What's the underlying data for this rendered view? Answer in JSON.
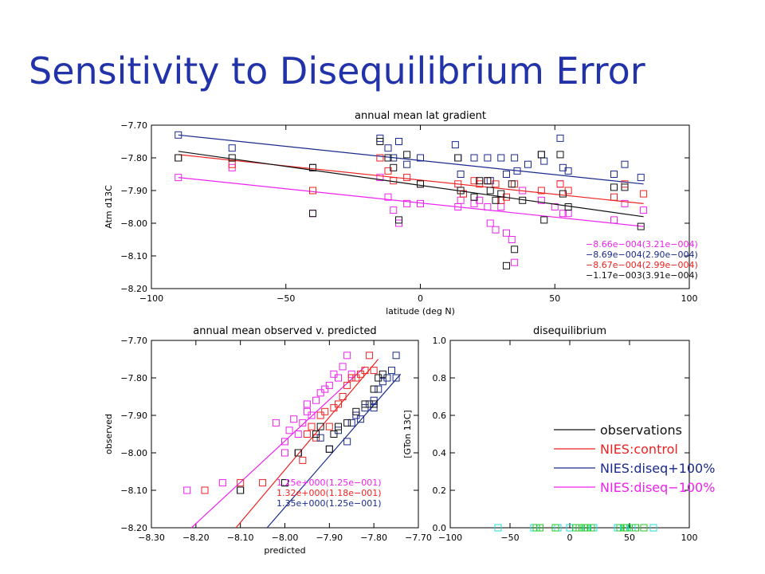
{
  "slide_title": "Sensitivity to Disequilibrium Error",
  "colors": {
    "title": "#2233aa",
    "black": "#111111",
    "red": "#ee2222",
    "blue": "#1a2a8c",
    "magenta": "#ee22ee",
    "cyan": "#22dddd",
    "green": "#22cc22"
  },
  "chart_data": [
    {
      "type": "scatter",
      "title": "annual mean lat gradient",
      "xlabel": "latitude (deg N)",
      "ylabel": "Atm d13C",
      "xlim": [
        -100,
        100
      ],
      "ylim": [
        -8.2,
        -7.7
      ],
      "xticks": [
        "−100",
        "−50",
        "0",
        "50",
        "100"
      ],
      "yticks": [
        "−7.70",
        "−7.80",
        "−7.90",
        "−8.00",
        "−8.10",
        "−8.20"
      ],
      "series": [
        {
          "color": "magenta",
          "points": [
            [
              -90,
              -7.86
            ],
            [
              -70,
              -7.83
            ],
            [
              -40,
              -7.9
            ],
            [
              -40,
              -7.97
            ],
            [
              -15,
              -7.86
            ],
            [
              -12,
              -7.92
            ],
            [
              -10,
              -7.96
            ],
            [
              -8,
              -8.0
            ],
            [
              -5,
              -7.94
            ],
            [
              0,
              -7.94
            ],
            [
              14,
              -7.95
            ],
            [
              15,
              -7.93
            ],
            [
              20,
              -7.94
            ],
            [
              22,
              -7.93
            ],
            [
              25,
              -7.95
            ],
            [
              26,
              -8.0
            ],
            [
              28,
              -8.02
            ],
            [
              30,
              -7.95
            ],
            [
              32,
              -8.03
            ],
            [
              34,
              -8.05
            ],
            [
              35,
              -8.12
            ],
            [
              38,
              -7.9
            ],
            [
              45,
              -7.93
            ],
            [
              50,
              -7.95
            ],
            [
              52,
              -7.88
            ],
            [
              53,
              -7.97
            ],
            [
              55,
              -7.97
            ],
            [
              72,
              -7.99
            ],
            [
              76,
              -7.94
            ],
            [
              83,
              -7.96
            ]
          ],
          "trend": [
            [
              -90,
              -7.86
            ],
            [
              83,
              -8.01
            ]
          ],
          "annotation": "−8.66e−004(3.21e−004)"
        },
        {
          "color": "blue",
          "points": [
            [
              -90,
              -7.73
            ],
            [
              -70,
              -7.77
            ],
            [
              -40,
              -7.83
            ],
            [
              -15,
              -7.74
            ],
            [
              -12,
              -7.77
            ],
            [
              -10,
              -7.8
            ],
            [
              -8,
              -7.75
            ],
            [
              -5,
              -7.82
            ],
            [
              0,
              -7.8
            ],
            [
              13,
              -7.76
            ],
            [
              14,
              -7.8
            ],
            [
              15,
              -7.85
            ],
            [
              20,
              -7.8
            ],
            [
              25,
              -7.8
            ],
            [
              26,
              -7.87
            ],
            [
              30,
              -7.8
            ],
            [
              32,
              -7.85
            ],
            [
              35,
              -7.8
            ],
            [
              36,
              -7.84
            ],
            [
              40,
              -7.82
            ],
            [
              45,
              -7.79
            ],
            [
              46,
              -7.81
            ],
            [
              52,
              -7.74
            ],
            [
              53,
              -7.83
            ],
            [
              55,
              -7.84
            ],
            [
              72,
              -7.85
            ],
            [
              76,
              -7.82
            ],
            [
              82,
              -7.86
            ]
          ],
          "trend": [
            [
              -90,
              -7.73
            ],
            [
              83,
              -7.88
            ]
          ],
          "annotation": "−8.69e−004(2.90e−004)"
        },
        {
          "color": "red",
          "points": [
            [
              -90,
              -7.8
            ],
            [
              -70,
              -7.82
            ],
            [
              -40,
              -7.9
            ],
            [
              -15,
              -7.8
            ],
            [
              -12,
              -7.84
            ],
            [
              -10,
              -7.87
            ],
            [
              -5,
              -7.86
            ],
            [
              0,
              -7.88
            ],
            [
              14,
              -7.88
            ],
            [
              16,
              -7.91
            ],
            [
              20,
              -7.87
            ],
            [
              22,
              -7.88
            ],
            [
              25,
              -7.87
            ],
            [
              28,
              -7.88
            ],
            [
              30,
              -7.93
            ],
            [
              32,
              -7.92
            ],
            [
              35,
              -7.88
            ],
            [
              45,
              -7.9
            ],
            [
              52,
              -7.88
            ],
            [
              55,
              -7.9
            ],
            [
              72,
              -7.92
            ],
            [
              76,
              -7.88
            ],
            [
              83,
              -7.91
            ]
          ],
          "trend": [
            [
              -90,
              -7.79
            ],
            [
              83,
              -7.94
            ]
          ],
          "annotation": "−8.67e−004(2.99e−004)"
        },
        {
          "color": "black",
          "points": [
            [
              -90,
              -7.8
            ],
            [
              -70,
              -7.8
            ],
            [
              -40,
              -7.83
            ],
            [
              -40,
              -7.97
            ],
            [
              -15,
              -7.75
            ],
            [
              -12,
              -7.8
            ],
            [
              -10,
              -7.83
            ],
            [
              -8,
              -7.99
            ],
            [
              -5,
              -7.79
            ],
            [
              0,
              -7.88
            ],
            [
              14,
              -7.8
            ],
            [
              15,
              -7.9
            ],
            [
              20,
              -7.92
            ],
            [
              22,
              -7.87
            ],
            [
              25,
              -7.87
            ],
            [
              26,
              -7.9
            ],
            [
              28,
              -7.93
            ],
            [
              30,
              -7.91
            ],
            [
              32,
              -8.13
            ],
            [
              34,
              -7.88
            ],
            [
              35,
              -8.08
            ],
            [
              38,
              -7.93
            ],
            [
              45,
              -7.79
            ],
            [
              46,
              -7.99
            ],
            [
              52,
              -7.79
            ],
            [
              53,
              -7.91
            ],
            [
              55,
              -7.95
            ],
            [
              72,
              -7.89
            ],
            [
              76,
              -7.89
            ],
            [
              82,
              -8.01
            ]
          ],
          "trend": [
            [
              -90,
              -7.78
            ],
            [
              83,
              -7.98
            ]
          ],
          "annotation": "−1.17e−003(3.91e−004)"
        }
      ]
    },
    {
      "type": "scatter",
      "title": "annual mean observed v. predicted",
      "xlabel": "predicted",
      "ylabel": "observed",
      "xlim": [
        -8.3,
        -7.7
      ],
      "ylim": [
        -8.2,
        -7.7
      ],
      "xticks": [
        "−8.30",
        "−8.20",
        "−8.10",
        "−8.00",
        "−7.90",
        "−7.80",
        "−7.70"
      ],
      "yticks": [
        "−7.70",
        "−7.80",
        "−7.90",
        "−8.00",
        "−8.10",
        "−8.20"
      ],
      "series": [
        {
          "color": "magenta",
          "points": [
            [
              -8.22,
              -8.1
            ],
            [
              -8.14,
              -8.08
            ],
            [
              -8.02,
              -7.92
            ],
            [
              -8.0,
              -8.0
            ],
            [
              -8.0,
              -7.97
            ],
            [
              -7.99,
              -7.94
            ],
            [
              -7.98,
              -7.91
            ],
            [
              -7.97,
              -7.95
            ],
            [
              -7.96,
              -7.92
            ],
            [
              -7.95,
              -7.89
            ],
            [
              -7.95,
              -7.87
            ],
            [
              -7.94,
              -7.9
            ],
            [
              -7.93,
              -7.86
            ],
            [
              -7.92,
              -7.84
            ],
            [
              -7.91,
              -7.83
            ],
            [
              -7.9,
              -7.82
            ],
            [
              -7.89,
              -7.79
            ],
            [
              -7.88,
              -7.8
            ],
            [
              -7.87,
              -7.77
            ],
            [
              -7.86,
              -7.74
            ],
            [
              -7.85,
              -7.79
            ]
          ],
          "trend": [
            [
              -8.21,
              -8.2
            ],
            [
              -7.82,
              -7.77
            ]
          ],
          "annotation": "1.25e+000(1.25e−001)"
        },
        {
          "color": "red",
          "points": [
            [
              -8.18,
              -8.1
            ],
            [
              -8.1,
              -8.08
            ],
            [
              -8.05,
              -8.08
            ],
            [
              -7.97,
              -8.0
            ],
            [
              -7.96,
              -8.02
            ],
            [
              -7.95,
              -7.95
            ],
            [
              -7.94,
              -7.93
            ],
            [
              -7.93,
              -7.96
            ],
            [
              -7.92,
              -7.9
            ],
            [
              -7.91,
              -7.89
            ],
            [
              -7.9,
              -7.93
            ],
            [
              -7.89,
              -7.88
            ],
            [
              -7.88,
              -7.87
            ],
            [
              -7.87,
              -7.85
            ],
            [
              -7.86,
              -7.82
            ],
            [
              -7.85,
              -7.8
            ],
            [
              -7.84,
              -7.8
            ],
            [
              -7.83,
              -7.79
            ],
            [
              -7.82,
              -7.78
            ],
            [
              -7.81,
              -7.74
            ],
            [
              -7.8,
              -7.78
            ]
          ],
          "trend": [
            [
              -8.11,
              -8.2
            ],
            [
              -7.79,
              -7.75
            ]
          ],
          "annotation": "1.32e+000(1.18e−001)"
        },
        {
          "color": "blue",
          "points": [
            [
              -8.1,
              -8.1
            ],
            [
              -8.0,
              -8.08
            ],
            [
              -7.97,
              -8.0
            ],
            [
              -7.92,
              -7.96
            ],
            [
              -7.9,
              -7.99
            ],
            [
              -7.88,
              -7.94
            ],
            [
              -7.86,
              -7.97
            ],
            [
              -7.85,
              -7.92
            ],
            [
              -7.84,
              -7.9
            ],
            [
              -7.83,
              -7.91
            ],
            [
              -7.82,
              -7.88
            ],
            [
              -7.81,
              -7.87
            ],
            [
              -7.8,
              -7.88
            ],
            [
              -7.8,
              -7.86
            ],
            [
              -7.79,
              -7.83
            ],
            [
              -7.78,
              -7.81
            ],
            [
              -7.77,
              -7.8
            ],
            [
              -7.76,
              -7.78
            ],
            [
              -7.75,
              -7.74
            ],
            [
              -7.75,
              -7.8
            ]
          ],
          "trend": [
            [
              -8.04,
              -8.2
            ],
            [
              -7.74,
              -7.79
            ]
          ],
          "annotation": "1.35e+000(1.25e−001)"
        },
        {
          "color": "black",
          "points": [
            [
              -8.1,
              -8.1
            ],
            [
              -8.0,
              -8.08
            ],
            [
              -7.97,
              -8.0
            ],
            [
              -7.93,
              -7.95
            ],
            [
              -7.92,
              -7.93
            ],
            [
              -7.9,
              -7.99
            ],
            [
              -7.89,
              -7.95
            ],
            [
              -7.88,
              -7.93
            ],
            [
              -7.86,
              -7.92
            ],
            [
              -7.84,
              -7.89
            ],
            [
              -7.82,
              -7.87
            ],
            [
              -7.8,
              -7.87
            ],
            [
              -7.8,
              -7.83
            ],
            [
              -7.79,
              -7.8
            ],
            [
              -7.78,
              -7.79
            ]
          ],
          "trend": null,
          "annotation": ""
        }
      ]
    },
    {
      "type": "scatter",
      "title": "disequilibrium",
      "xlabel": "",
      "ylabel": "[GTon 13C]",
      "xlim": [
        -100,
        100
      ],
      "ylim": [
        0,
        1
      ],
      "xticks": [
        "−100",
        "−50",
        "0",
        "50",
        "100"
      ],
      "yticks": [
        "0.0",
        "0.2",
        "0.4",
        "0.6",
        "0.8",
        "1.0"
      ],
      "series": [
        {
          "color": "cyan",
          "points": [
            [
              -60,
              0
            ],
            [
              -30,
              0
            ],
            [
              -10,
              0
            ],
            [
              0,
              0
            ],
            [
              14,
              0
            ],
            [
              20,
              0
            ],
            [
              40,
              0
            ],
            [
              45,
              0
            ],
            [
              52,
              0
            ],
            [
              70,
              0
            ]
          ]
        },
        {
          "color": "green",
          "points": [
            [
              -28,
              0
            ],
            [
              -25,
              0
            ],
            [
              -12,
              0
            ],
            [
              5,
              0
            ],
            [
              8,
              0
            ],
            [
              12,
              0
            ],
            [
              15,
              0
            ],
            [
              18,
              0
            ],
            [
              42,
              0
            ],
            [
              46,
              0
            ],
            [
              48,
              0
            ],
            [
              55,
              0
            ],
            [
              62,
              0
            ]
          ]
        }
      ],
      "legend": [
        {
          "label": "observations",
          "color": "black"
        },
        {
          "label": "NIES:control",
          "color": "red"
        },
        {
          "label": "NIES:diseq+100%",
          "color": "blue"
        },
        {
          "label": "NIES:diseq−100%",
          "color": "magenta"
        }
      ],
      "legend_position": "lower-right"
    }
  ]
}
